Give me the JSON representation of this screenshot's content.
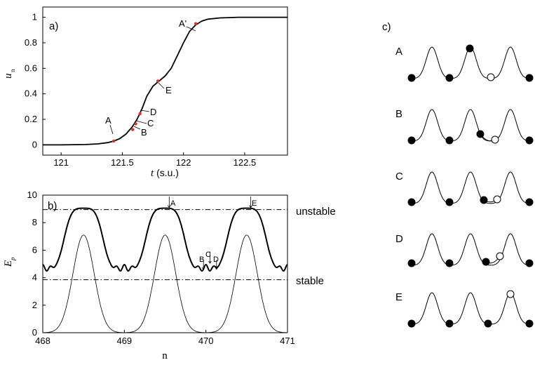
{
  "figure": {
    "panel_a": {
      "label": "a)",
      "ylabel": "u",
      "ylabel_sub": "n",
      "xlabel_italic": "t",
      "xlabel_rest": " (s.u.)",
      "xticks": [
        "121",
        "121.5",
        "122",
        "122.5"
      ],
      "yticks": [
        "0",
        "0.2",
        "0.4",
        "0.6",
        "0.8",
        "1"
      ],
      "annotations": [
        "A",
        "B",
        "C",
        "D",
        "E",
        "A'"
      ]
    },
    "panel_b": {
      "label": "b)",
      "ylabel": "E",
      "ylabel_sub": "p",
      "xlabel": "n",
      "xticks": [
        "468",
        "469",
        "470",
        "471"
      ],
      "yticks": [
        "0",
        "2",
        "4",
        "6",
        "8",
        "10"
      ],
      "unstable_label": "unstable",
      "stable_label": "stable",
      "annotations": [
        "A",
        "B",
        "C",
        "D",
        "E"
      ]
    },
    "panel_c": {
      "label": "c)",
      "rows": [
        "A",
        "B",
        "C",
        "D",
        "E"
      ]
    }
  },
  "chart_data": [
    {
      "type": "line",
      "panel": "a",
      "xlabel": "t (s.u.)",
      "ylabel": "u_n",
      "xlim": [
        120.85,
        122.85
      ],
      "ylim": [
        -0.08,
        1.08
      ],
      "series": [
        {
          "x": [
            120.85,
            121.0,
            121.2,
            121.3,
            121.38,
            121.43,
            121.48,
            121.53,
            121.58,
            121.62,
            121.66,
            121.7,
            121.75,
            121.8,
            121.85,
            121.9,
            121.95,
            122.0,
            122.05,
            122.1,
            122.15,
            122.2,
            122.3,
            122.45,
            122.6,
            122.85
          ],
          "y": [
            0.0,
            0.0,
            0.003,
            0.008,
            0.018,
            0.03,
            0.05,
            0.085,
            0.14,
            0.2,
            0.28,
            0.38,
            0.46,
            0.5,
            0.54,
            0.6,
            0.7,
            0.8,
            0.89,
            0.94,
            0.97,
            0.985,
            0.995,
            1.0,
            1.0,
            1.0
          ]
        }
      ],
      "points": [
        {
          "label": "A",
          "x": 121.43,
          "y": 0.03
        },
        {
          "label": "B",
          "x": 121.585,
          "y": 0.12
        },
        {
          "label": "C",
          "x": 121.61,
          "y": 0.165
        },
        {
          "label": "D",
          "x": 121.645,
          "y": 0.245
        },
        {
          "label": "E",
          "x": 121.79,
          "y": 0.5
        },
        {
          "label": "A'",
          "x": 122.1,
          "y": 0.95
        }
      ]
    },
    {
      "type": "line",
      "panel": "b",
      "xlabel": "n",
      "ylabel": "E_p",
      "xlim": [
        468,
        471
      ],
      "ylim": [
        0,
        10
      ],
      "series": [
        {
          "name": "thick",
          "x": [
            468.0,
            468.05,
            468.1,
            468.15,
            468.2,
            468.3,
            468.4,
            468.5,
            468.6,
            468.7,
            468.8,
            468.85,
            468.9,
            468.95,
            469.0,
            469.05,
            469.1,
            469.15,
            469.2,
            469.3,
            469.4,
            469.5,
            469.6,
            469.7,
            469.8,
            469.85,
            469.9,
            469.95,
            470.0,
            470.05,
            470.1,
            470.15,
            470.2,
            470.3,
            470.4,
            470.5,
            470.6,
            470.7,
            470.8,
            470.85,
            470.9,
            470.95,
            471.0
          ],
          "y": [
            4.6,
            4.9,
            4.7,
            5.4,
            6.6,
            8.1,
            8.9,
            9.05,
            8.9,
            8.1,
            6.6,
            5.4,
            4.7,
            4.9,
            4.6,
            4.9,
            4.7,
            5.4,
            6.6,
            8.1,
            8.9,
            9.05,
            8.9,
            8.1,
            6.6,
            5.4,
            4.7,
            4.9,
            4.6,
            4.9,
            4.7,
            5.4,
            6.6,
            8.1,
            8.9,
            9.05,
            8.9,
            8.1,
            6.6,
            5.4,
            4.7,
            4.9,
            4.6
          ]
        },
        {
          "name": "thin",
          "x": [
            468.0,
            468.1,
            468.2,
            468.3,
            468.4,
            468.5,
            468.6,
            468.7,
            468.8,
            468.9,
            469.0,
            469.1,
            469.2,
            469.3,
            469.4,
            469.5,
            469.6,
            469.7,
            469.8,
            469.9,
            470.0,
            470.1,
            470.2,
            470.3,
            470.4,
            470.5,
            470.6,
            470.7,
            470.8,
            470.9,
            471.0
          ],
          "y": [
            0.0,
            0.3,
            1.3,
            3.2,
            5.6,
            7.1,
            5.6,
            3.2,
            1.3,
            0.3,
            0.0,
            0.3,
            1.3,
            3.2,
            5.6,
            7.1,
            5.6,
            3.2,
            1.3,
            0.3,
            0.0,
            0.3,
            1.3,
            3.2,
            5.6,
            7.1,
            5.6,
            3.2,
            1.3,
            0.3,
            0.0
          ]
        }
      ],
      "hlines": [
        {
          "label": "unstable",
          "y": 8.95
        },
        {
          "label": "stable",
          "y": 3.85
        }
      ],
      "points": [
        {
          "label": "A",
          "x": 469.55
        },
        {
          "label": "B",
          "x": 469.97
        },
        {
          "label": "C",
          "x": 470.05
        },
        {
          "label": "D",
          "x": 470.13
        },
        {
          "label": "E",
          "x": 470.55
        }
      ]
    }
  ]
}
